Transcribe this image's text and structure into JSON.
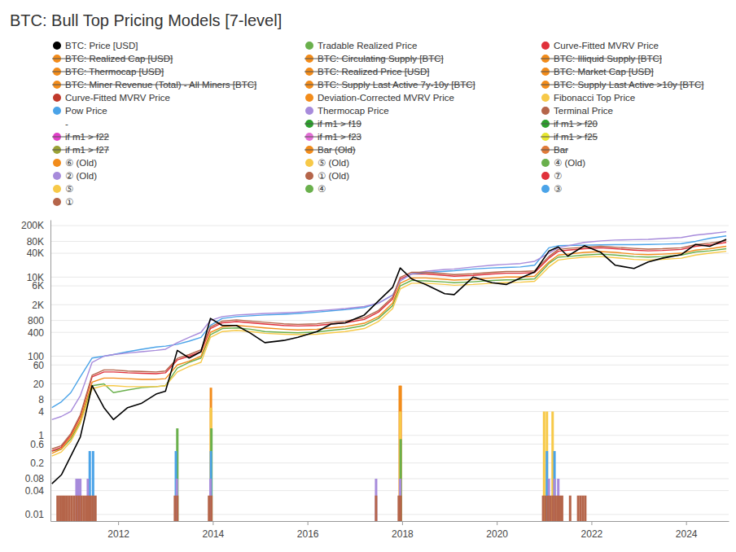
{
  "chart_data": {
    "type": "line",
    "title": "BTC: Bull Top Pricing Models [7-level]",
    "log": "y",
    "grid": true,
    "xlim": [
      2010.57,
      2024.9
    ],
    "xticks": [
      2012,
      2014,
      2016,
      2018,
      2020,
      2022,
      2024
    ],
    "ylim": [
      0.0068,
      280000
    ],
    "yticks": [
      0.01,
      0.04,
      0.08,
      0.2,
      0.6,
      1,
      4,
      8,
      20,
      60,
      100,
      400,
      800,
      {
        "value": 2000,
        "label": "2K"
      },
      {
        "value": 6000,
        "label": "6K"
      },
      {
        "value": 10000,
        "label": "10K"
      },
      {
        "value": 40000,
        "label": "40K"
      },
      {
        "value": 80000,
        "label": "80K"
      },
      {
        "value": 200000,
        "label": "200K"
      }
    ],
    "x": [
      2010.6,
      2010.8,
      2011.0,
      2011.2,
      2011.45,
      2011.7,
      2011.9,
      2012.2,
      2012.5,
      2012.8,
      2013.0,
      2013.25,
      2013.5,
      2013.75,
      2013.95,
      2014.2,
      2014.5,
      2014.8,
      2015.1,
      2015.5,
      2015.8,
      2016.2,
      2016.5,
      2016.8,
      2017.2,
      2017.5,
      2017.8,
      2017.96,
      2018.2,
      2018.5,
      2018.9,
      2019.1,
      2019.5,
      2019.9,
      2020.2,
      2020.5,
      2020.8,
      2021.1,
      2021.3,
      2021.5,
      2021.85,
      2022.2,
      2022.5,
      2022.9,
      2023.2,
      2023.5,
      2023.9,
      2024.2,
      2024.5,
      2024.85
    ],
    "series": [
      {
        "name": "BTC: Price [USD]",
        "color": "#000000",
        "values": [
          0.06,
          0.1,
          0.3,
          0.9,
          18,
          5,
          2.5,
          5,
          6.5,
          11,
          13,
          140,
          90,
          130,
          900,
          600,
          600,
          380,
          220,
          250,
          300,
          420,
          650,
          700,
          1100,
          2500,
          5500,
          17000,
          9000,
          6500,
          3800,
          3600,
          10000,
          7200,
          6500,
          9500,
          13500,
          45000,
          58000,
          34000,
          62000,
          42000,
          20000,
          16500,
          24000,
          30000,
          37000,
          67000,
          60000,
          90000
        ]
      },
      {
        "name": "Tradable Realized Price",
        "color": "#6ab04c",
        "values": [
          0.4,
          0.45,
          0.8,
          2.2,
          18,
          20,
          12,
          14,
          16,
          17,
          18,
          50,
          70,
          90,
          350,
          500,
          520,
          480,
          420,
          400,
          390,
          410,
          450,
          490,
          600,
          900,
          1900,
          6000,
          8200,
          8000,
          7500,
          7200,
          7600,
          8200,
          8500,
          8600,
          9000,
          22000,
          32000,
          33000,
          36000,
          38000,
          36000,
          33000,
          32000,
          33000,
          36000,
          43000,
          46000,
          52000
        ]
      },
      {
        "name": "Curve-Fitted MVRV Price",
        "color": "#e0313b",
        "values": [
          0.4,
          0.5,
          1,
          3,
          30,
          40,
          40,
          38,
          37,
          36,
          38,
          80,
          100,
          130,
          500,
          700,
          750,
          700,
          650,
          600,
          580,
          600,
          650,
          700,
          850,
          1300,
          2800,
          9000,
          12000,
          12000,
          11000,
          10500,
          11000,
          12000,
          12500,
          12500,
          13000,
          30000,
          45000,
          48000,
          52000,
          55000,
          52000,
          48000,
          46000,
          47000,
          50000,
          60000,
          65000,
          75000
        ]
      },
      {
        "name": "BTC: Realized Cap [USD]",
        "color": "#f28c1b",
        "line_style": "strikethrough"
      },
      {
        "name": "BTC: Circulating Supply [BTC]",
        "color": "#f28c1b",
        "line_style": "strikethrough"
      },
      {
        "name": "BTC: Illiquid Supply [BTC]",
        "color": "#f28c1b",
        "line_style": "strikethrough"
      },
      {
        "name": "BTC: Thermocap [USD]",
        "color": "#f28c1b",
        "line_style": "strikethrough"
      },
      {
        "name": "BTC: Realized Price [USD]",
        "color": "#f28c1b",
        "line_style": "strikethrough"
      },
      {
        "name": "BTC: Market Cap [USD]",
        "color": "#f28c1b",
        "line_style": "strikethrough"
      },
      {
        "name": "BTC: Miner Revenue (Total) - All Miners [BTC]",
        "color": "#f28c1b",
        "line_style": "strikethrough"
      },
      {
        "name": "BTC: Supply Last Active 7y-10y [BTC]",
        "color": "#f28c1b",
        "line_style": "strikethrough"
      },
      {
        "name": "BTC: Supply Last Active >10y [BTC]",
        "color": "#f28c1b",
        "line_style": "strikethrough"
      },
      {
        "name": "Curve-Fitted MVRV Price",
        "color": "#c0392b"
      },
      {
        "name": "Deviation-Corrected MVRV Price",
        "color": "#f28c1b",
        "values": [
          0.35,
          0.45,
          0.9,
          2.5,
          22,
          28,
          28,
          27,
          26,
          26,
          27,
          60,
          75,
          100,
          400,
          550,
          600,
          560,
          520,
          480,
          460,
          480,
          520,
          560,
          680,
          1000,
          2200,
          7000,
          9500,
          9500,
          8800,
          8400,
          8800,
          9500,
          10000,
          10000,
          10500,
          24000,
          36000,
          38000,
          42000,
          44000,
          42000,
          38000,
          37000,
          38000,
          40000,
          48000,
          52000,
          60000
        ]
      },
      {
        "name": "Fibonacci Top Price",
        "color": "#f7c948",
        "values": [
          0.3,
          0.38,
          0.7,
          2,
          15,
          18,
          18,
          17,
          17,
          17,
          18,
          40,
          55,
          70,
          300,
          420,
          450,
          420,
          380,
          360,
          350,
          360,
          390,
          420,
          500,
          750,
          1600,
          5000,
          7000,
          7000,
          6500,
          6200,
          6500,
          7000,
          7300,
          7400,
          7800,
          18000,
          27000,
          29000,
          32000,
          33000,
          31000,
          28000,
          27000,
          28000,
          30000,
          36000,
          40000,
          45000
        ]
      },
      {
        "name": "Pow Price",
        "color": "#4aa3e8",
        "values": [
          5,
          7,
          12,
          30,
          90,
          100,
          110,
          130,
          150,
          170,
          180,
          200,
          240,
          300,
          600,
          900,
          1000,
          1050,
          1100,
          1150,
          1200,
          1300,
          1400,
          1500,
          1700,
          2200,
          3500,
          8000,
          12000,
          13000,
          14000,
          14500,
          16000,
          17000,
          17500,
          18000,
          20000,
          55000,
          62000,
          63000,
          64000,
          65000,
          66000,
          66000,
          67000,
          68000,
          70000,
          80000,
          95000,
          110000
        ]
      },
      {
        "name": "Thermocap Price",
        "color": "#a78bdb",
        "values": [
          2.5,
          3,
          4,
          10,
          70,
          100,
          110,
          120,
          130,
          140,
          150,
          220,
          300,
          400,
          800,
          1000,
          1100,
          1150,
          1200,
          1250,
          1300,
          1400,
          1500,
          1600,
          1800,
          2200,
          3500,
          8000,
          12000,
          14000,
          15500,
          16000,
          18000,
          20000,
          21000,
          22000,
          25000,
          40000,
          55000,
          62000,
          75000,
          82000,
          86000,
          88000,
          90000,
          94000,
          100000,
          115000,
          125000,
          140000
        ]
      },
      {
        "name": "Terminal Price",
        "color": "#b5654a",
        "values": [
          0.45,
          0.55,
          1.1,
          3.3,
          33,
          45,
          45,
          42,
          41,
          40,
          42,
          88,
          110,
          145,
          550,
          770,
          830,
          770,
          720,
          660,
          640,
          660,
          720,
          770,
          940,
          1430,
          3100,
          9900,
          13200,
          13200,
          12100,
          11600,
          12100,
          13200,
          13800,
          13800,
          14300,
          33000,
          50000,
          53000,
          57000,
          60000,
          57000,
          53000,
          51000,
          52000,
          55000,
          66000,
          72000,
          83000
        ]
      },
      {
        "name": "-"
      },
      {
        "name": "if m1 > f19",
        "color": "#2ca02c",
        "line_style": "strikethrough"
      },
      {
        "name": "if m1 > f20",
        "color": "#2ca02c",
        "line_style": "strikethrough"
      },
      {
        "name": "if m1 > f22",
        "color": "#e040c8",
        "line_style": "strikethrough"
      },
      {
        "name": "if m1 > f23",
        "color": "#e36fd6",
        "line_style": "strikethrough"
      },
      {
        "name": "if m1 > f25",
        "color": "#e6e62e",
        "line_style": "strikethrough"
      },
      {
        "name": "if m1 > f27",
        "color": "#9ba335",
        "line_style": "strikethrough"
      },
      {
        "name": "Bar (Old)",
        "color": "#f28c1b",
        "line_style": "strikethrough"
      },
      {
        "name": "Bar",
        "color": "#e07b39",
        "line_style": "strikethrough"
      },
      {
        "name": "⑥ (Old)",
        "color": "#f28c1b",
        "type": "bar",
        "x": [
          2013.96,
          2017.95,
          2017.97
        ],
        "values": [
          16,
          18,
          18
        ]
      },
      {
        "name": "⑤ (Old)",
        "color": "#f7c948"
      },
      {
        "name": "④ (Old)",
        "color": "#6ab04c"
      },
      {
        "name": "② (Old)",
        "color": "#a78bdb",
        "type": "bar",
        "x": [
          2011.12,
          2011.16,
          2011.2,
          2011.36,
          2013.24,
          2013.95,
          2017.45,
          2017.96,
          2021.1,
          2021.22,
          2021.3
        ],
        "values": [
          0.08,
          0.08,
          0.08,
          0.08,
          0.08,
          0.08,
          0.08,
          0.08,
          0.08,
          0.08,
          0.08
        ]
      },
      {
        "name": "① (Old)",
        "color": "#b5654a"
      },
      {
        "name": "⑦",
        "color": "#e0313b"
      },
      {
        "name": "⑤",
        "color": "#f7c948",
        "type": "bar",
        "x": [
          2013.96,
          2017.96,
          2021.0,
          2021.06,
          2021.18
        ],
        "values": [
          5,
          4,
          4,
          4,
          4
        ]
      },
      {
        "name": "④",
        "color": "#6ab04c",
        "type": "bar",
        "x": [
          2013.25,
          2013.97,
          2017.97
        ],
        "values": [
          1.5,
          1.5,
          0.8
        ]
      },
      {
        "name": "③",
        "color": "#4aa3e8",
        "type": "bar",
        "x": [
          2011.4,
          2011.47,
          2013.22,
          2013.96,
          2021.06,
          2021.22
        ],
        "values": [
          0.4,
          0.4,
          0.4,
          0.4,
          0.4,
          0.4
        ]
      },
      {
        "name": "①",
        "color": "#b5654a",
        "type": "bar",
        "x": [
          2010.72,
          2010.77,
          2010.82,
          2010.87,
          2010.92,
          2010.97,
          2011.02,
          2011.07,
          2011.12,
          2011.17,
          2011.22,
          2011.27,
          2011.32,
          2011.37,
          2011.42,
          2011.47,
          2011.52,
          2013.2,
          2013.25,
          2013.92,
          2013.97,
          2017.45,
          2017.93,
          2017.97,
          2020.98,
          2021.03,
          2021.08,
          2021.13,
          2021.18,
          2021.23,
          2021.28,
          2021.33,
          2021.38,
          2021.55,
          2021.72,
          2021.77,
          2021.82,
          2021.87
        ],
        "values": [
          0.03,
          0.03,
          0.03,
          0.03,
          0.03,
          0.03,
          0.03,
          0.03,
          0.03,
          0.03,
          0.03,
          0.03,
          0.03,
          0.03,
          0.03,
          0.03,
          0.03,
          0.03,
          0.03,
          0.03,
          0.03,
          0.03,
          0.03,
          0.03,
          0.03,
          0.03,
          0.03,
          0.03,
          0.03,
          0.03,
          0.03,
          0.03,
          0.03,
          0.03,
          0.03,
          0.03,
          0.03,
          0.03
        ]
      }
    ]
  }
}
